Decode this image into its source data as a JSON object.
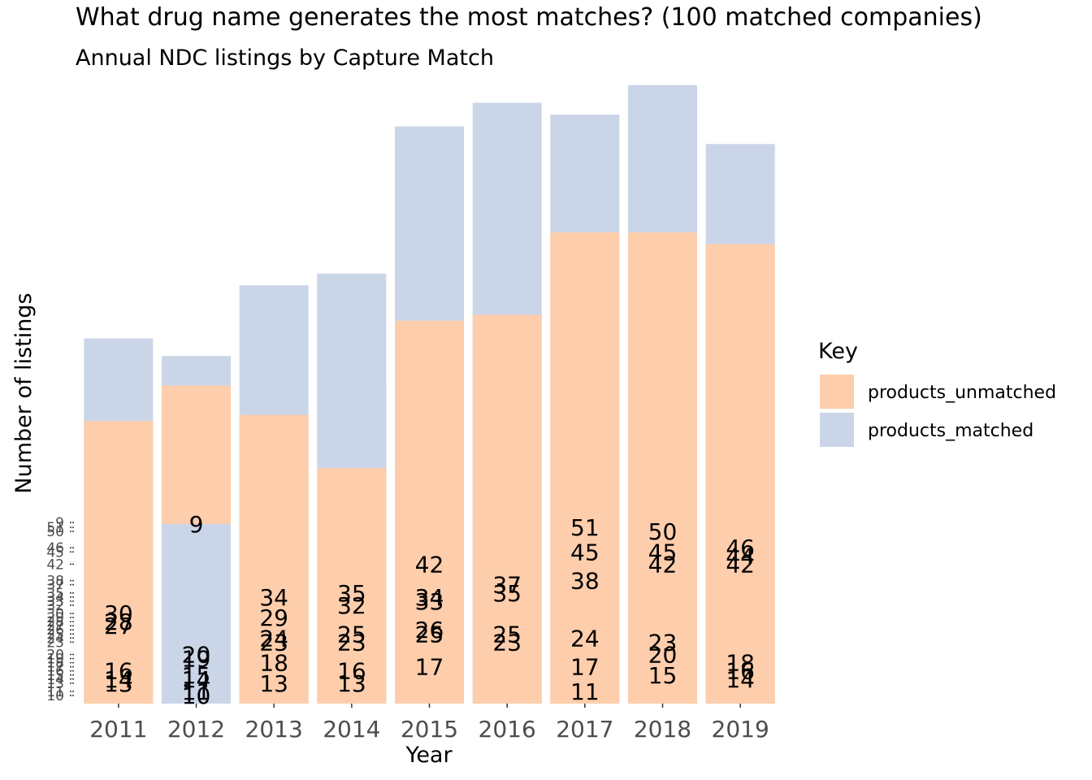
{
  "chart_data": {
    "type": "bar",
    "stacked": true,
    "title": "What drug name generates the most matches? (100 matched companies)",
    "subtitle": "Annual NDC listings by Capture Match",
    "xlabel": "Year",
    "ylabel": "Number of listings",
    "categories": [
      "2011",
      "2012",
      "2013",
      "2014",
      "2015",
      "2016",
      "2017",
      "2018",
      "2019"
    ],
    "legend": {
      "title": "Key",
      "position": "right",
      "entries": [
        "products_unmatched",
        "products_matched"
      ]
    },
    "colors": {
      "products_unmatched": "#fdcdac",
      "products_matched": "#cbd5e8"
    },
    "y_tick_labels": [
      "10",
      "11",
      "13",
      "14",
      "15",
      "16",
      "17",
      "18",
      "19",
      "20",
      "23",
      "24",
      "25",
      "26",
      "27",
      "28",
      "29",
      "30",
      "32",
      "33",
      "34",
      "35",
      "37",
      "38",
      "42",
      "45",
      "46",
      "50",
      "51",
      "9"
    ],
    "bars": [
      {
        "x": "2011",
        "segments": [
          {
            "key": "products_unmatched",
            "bottom": 0,
            "top": 30,
            "label": "30"
          },
          {
            "key": "products_unmatched",
            "bottom": 30,
            "top": 28,
            "label": "28"
          },
          {
            "key": "products_unmatched",
            "bottom": 28,
            "top": 27,
            "label": "27"
          },
          {
            "key": "products_unmatched",
            "bottom": 27,
            "top": 16,
            "label": "16"
          },
          {
            "key": "products_unmatched",
            "bottom": 16,
            "top": 14,
            "label": "14"
          },
          {
            "key": "products_unmatched",
            "bottom": 14,
            "top": 13,
            "label": "13"
          },
          {
            "key": "products_matched",
            "bottom": 13,
            "top": 10,
            "label": ""
          }
        ]
      },
      {
        "x": "2012",
        "segments": [
          {
            "key": "products_matched",
            "bottom": 0,
            "top": 9,
            "label": "9"
          },
          {
            "key": "products_unmatched",
            "bottom": 9,
            "top": 20,
            "label": "20"
          },
          {
            "key": "products_unmatched",
            "bottom": 20,
            "top": 19,
            "label": "19"
          },
          {
            "key": "products_unmatched",
            "bottom": 19,
            "top": 15,
            "label": "15"
          },
          {
            "key": "products_unmatched",
            "bottom": 15,
            "top": 14,
            "label": "14"
          },
          {
            "key": "products_unmatched",
            "bottom": 14,
            "top": 11,
            "label": "11"
          },
          {
            "key": "products_matched",
            "bottom": 11,
            "top": 10,
            "label": "10"
          }
        ]
      },
      {
        "x": "2013",
        "segments": [
          {
            "key": "products_unmatched",
            "bottom": 0,
            "top": 34,
            "label": "34"
          },
          {
            "key": "products_unmatched",
            "bottom": 34,
            "top": 29,
            "label": "29"
          },
          {
            "key": "products_unmatched",
            "bottom": 29,
            "top": 24,
            "label": "24"
          },
          {
            "key": "products_unmatched",
            "bottom": 24,
            "top": 23,
            "label": "23"
          },
          {
            "key": "products_unmatched",
            "bottom": 23,
            "top": 18,
            "label": "18"
          },
          {
            "key": "products_unmatched",
            "bottom": 18,
            "top": 13,
            "label": "13"
          },
          {
            "key": "products_matched",
            "bottom": 13,
            "top": 0,
            "label": ""
          }
        ]
      },
      {
        "x": "2014",
        "segments": [
          {
            "key": "products_unmatched",
            "bottom": 0,
            "top": 35,
            "label": "35"
          },
          {
            "key": "products_unmatched",
            "bottom": 35,
            "top": 32,
            "label": "32"
          },
          {
            "key": "products_unmatched",
            "bottom": 32,
            "top": 25,
            "label": "25"
          },
          {
            "key": "products_unmatched",
            "bottom": 25,
            "top": 23,
            "label": "23"
          },
          {
            "key": "products_matched",
            "bottom": 23,
            "top": 16,
            "label": "16"
          },
          {
            "key": "products_unmatched",
            "bottom": 16,
            "top": 13,
            "label": "13"
          },
          {
            "key": "products_matched",
            "bottom": 13,
            "top": 0,
            "label": ""
          }
        ]
      },
      {
        "x": "2015",
        "segments": [
          {
            "key": "products_unmatched",
            "bottom": 0,
            "top": 42,
            "label": "42"
          },
          {
            "key": "products_unmatched",
            "bottom": 42,
            "top": 34,
            "label": "34"
          },
          {
            "key": "products_unmatched",
            "bottom": 34,
            "top": 33,
            "label": "33"
          },
          {
            "key": "products_unmatched",
            "bottom": 33,
            "top": 26,
            "label": "26"
          },
          {
            "key": "products_unmatched",
            "bottom": 26,
            "top": 25,
            "label": "25"
          },
          {
            "key": "products_unmatched",
            "bottom": 25,
            "top": 17,
            "label": "17"
          },
          {
            "key": "products_matched",
            "bottom": 17,
            "top": 0,
            "label": ""
          }
        ]
      },
      {
        "x": "2016",
        "segments": [
          {
            "key": "products_unmatched",
            "bottom": 0,
            "top": 37,
            "label": "37"
          },
          {
            "key": "products_unmatched",
            "bottom": 37,
            "top": 35,
            "label": "35"
          },
          {
            "key": "products_unmatched",
            "bottom": 35,
            "top": 25,
            "label": "25"
          },
          {
            "key": "products_unmatched",
            "bottom": 25,
            "top": 23,
            "label": "23"
          },
          {
            "key": "products_matched",
            "bottom": 23,
            "top": 0,
            "label": ""
          }
        ]
      },
      {
        "x": "2017",
        "segments": [
          {
            "key": "products_unmatched",
            "bottom": 0,
            "top": 51,
            "label": "51"
          },
          {
            "key": "products_unmatched",
            "bottom": 51,
            "top": 45,
            "label": "45"
          },
          {
            "key": "products_unmatched",
            "bottom": 45,
            "top": 38,
            "label": "38"
          },
          {
            "key": "products_unmatched",
            "bottom": 38,
            "top": 24,
            "label": "24"
          },
          {
            "key": "products_unmatched",
            "bottom": 24,
            "top": 17,
            "label": "17"
          },
          {
            "key": "products_unmatched",
            "bottom": 17,
            "top": 11,
            "label": "11"
          },
          {
            "key": "products_matched",
            "bottom": 11,
            "top": 0,
            "label": ""
          }
        ]
      },
      {
        "x": "2018",
        "segments": [
          {
            "key": "products_unmatched",
            "bottom": 0,
            "top": 50,
            "label": "50"
          },
          {
            "key": "products_unmatched",
            "bottom": 50,
            "top": 45,
            "label": "45"
          },
          {
            "key": "products_unmatched",
            "bottom": 45,
            "top": 42,
            "label": "42"
          },
          {
            "key": "products_unmatched",
            "bottom": 42,
            "top": 23,
            "label": "23"
          },
          {
            "key": "products_unmatched",
            "bottom": 23,
            "top": 20,
            "label": "20"
          },
          {
            "key": "products_unmatched",
            "bottom": 20,
            "top": 15,
            "label": "15"
          },
          {
            "key": "products_matched",
            "bottom": 15,
            "top": 0,
            "label": ""
          }
        ]
      },
      {
        "x": "2019",
        "segments": [
          {
            "key": "products_unmatched",
            "bottom": 0,
            "top": 46,
            "label": "46"
          },
          {
            "key": "products_unmatched",
            "bottom": 46,
            "top": 44,
            "label": "44"
          },
          {
            "key": "products_unmatched",
            "bottom": 44,
            "top": 42,
            "label": "42"
          },
          {
            "key": "products_unmatched",
            "bottom": 42,
            "top": 18,
            "label": "18"
          },
          {
            "key": "products_unmatched",
            "bottom": 18,
            "top": 16,
            "label": "16"
          },
          {
            "key": "products_unmatched",
            "bottom": 16,
            "top": 14,
            "label": "14"
          },
          {
            "key": "products_matched",
            "bottom": 14,
            "top": 0,
            "label": ""
          }
        ]
      }
    ]
  }
}
